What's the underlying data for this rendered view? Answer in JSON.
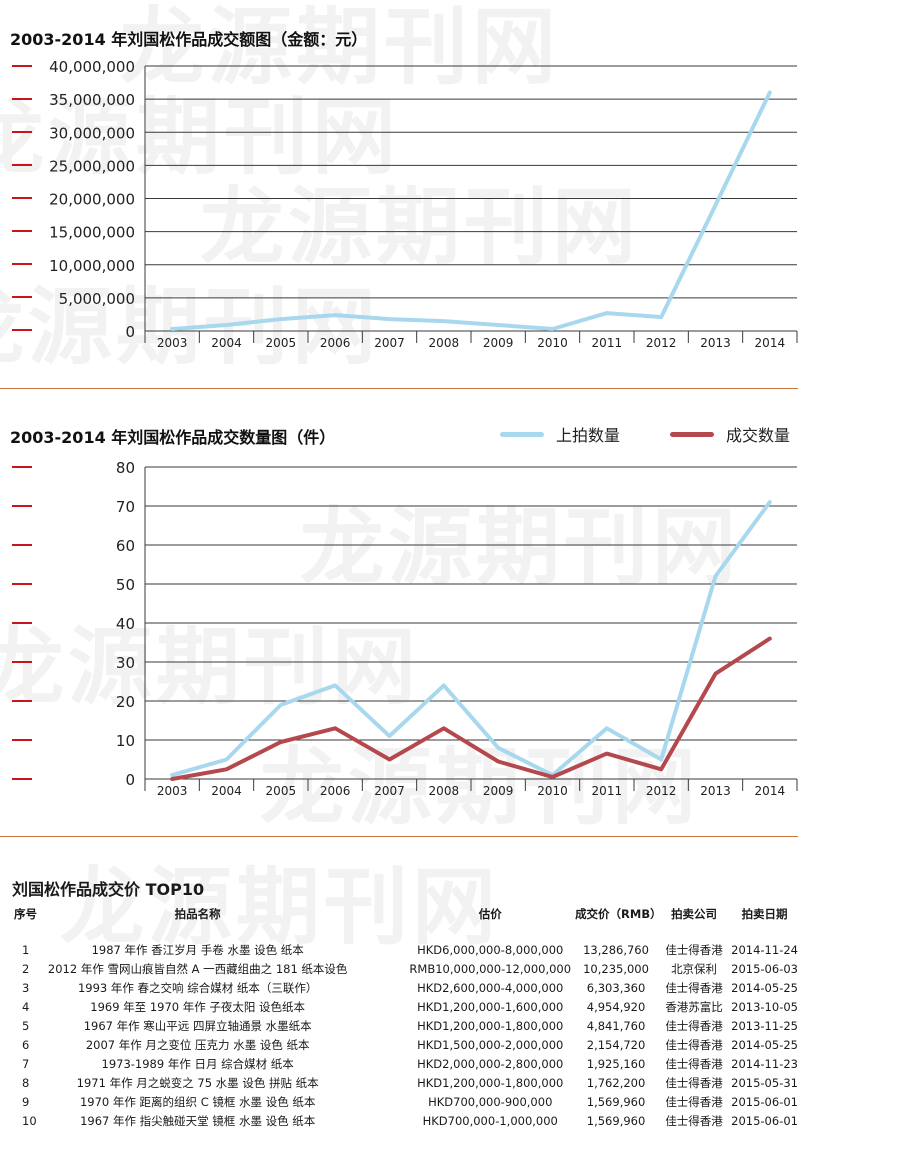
{
  "watermark_text": "龙源期刊网",
  "amount_chart": {
    "title": "2003-2014 年刘国松作品成交额图（金额：元）",
    "chart_data": {
      "type": "line",
      "x": [
        "2003",
        "2004",
        "2005",
        "2006",
        "2007",
        "2008",
        "2009",
        "2010",
        "2011",
        "2012",
        "2013",
        "2014"
      ],
      "series": [
        {
          "values": [
            300000,
            900000,
            1800000,
            2400000,
            1800000,
            1500000,
            900000,
            300000,
            2700000,
            2100000,
            19000000,
            36000000
          ],
          "color": "#a8d8ee"
        }
      ],
      "yticks": [
        "0",
        "5,000,000",
        "10,000,000",
        "15,000,000",
        "20,000,000",
        "25,000,000",
        "30,000,000",
        "35,000,000",
        "40,000,000"
      ],
      "ylim": [
        0,
        40000000
      ],
      "grid": true
    }
  },
  "count_chart": {
    "title": "2003-2014 年刘国松作品成交数量图（件）",
    "chart_data": {
      "type": "line",
      "x": [
        "2003",
        "2004",
        "2005",
        "2006",
        "2007",
        "2008",
        "2009",
        "2010",
        "2011",
        "2012",
        "2013",
        "2014"
      ],
      "series": [
        {
          "name": "上拍数量",
          "values": [
            1,
            5,
            19,
            24,
            11,
            24,
            8,
            1,
            13,
            5,
            52,
            71
          ],
          "color": "#a8d8ee"
        },
        {
          "name": "成交数量",
          "values": [
            0,
            2.5,
            9.5,
            13,
            5,
            13,
            4.5,
            0.5,
            6.5,
            2.5,
            27,
            36
          ],
          "color": "#b5484c"
        }
      ],
      "yticks": [
        "0",
        "10",
        "20",
        "30",
        "40",
        "50",
        "60",
        "70",
        "80"
      ],
      "ylim": [
        0,
        80
      ],
      "legend": "top-right",
      "grid": true
    }
  },
  "top10": {
    "title": "刘国松作品成交价 TOP10",
    "headers": [
      "序号",
      "拍品名称",
      "估价",
      "成交价（RMB）",
      "拍卖公司",
      "拍卖日期"
    ],
    "rows": [
      [
        "1",
        "1987 年作 香江岁月 手卷 水墨 设色 纸本",
        "HKD6,000,000-8,000,000",
        "13,286,760",
        "佳士得香港",
        "2014-11-24"
      ],
      [
        "2",
        "2012 年作 雪网山痕皆自然 A 一西藏组曲之 181 纸本设色",
        "RMB10,000,000-12,000,000",
        "10,235,000",
        "北京保利",
        "2015-06-03"
      ],
      [
        "3",
        "1993 年作 春之交响 综合媒材 纸本（三联作）",
        "HKD2,600,000-4,000,000",
        "6,303,360",
        "佳士得香港",
        "2014-05-25"
      ],
      [
        "4",
        "1969 年至 1970 年作 子夜太阳 设色纸本",
        "HKD1,200,000-1,600,000",
        "4,954,920",
        "香港苏富比",
        "2013-10-05"
      ],
      [
        "5",
        "1967 年作 寒山平远 四屏立轴通景 水墨纸本",
        "HKD1,200,000-1,800,000",
        "4,841,760",
        "佳士得香港",
        "2013-11-25"
      ],
      [
        "6",
        "2007 年作 月之变位 压克力 水墨 设色 纸本",
        "HKD1,500,000-2,000,000",
        "2,154,720",
        "佳士得香港",
        "2014-05-25"
      ],
      [
        "7",
        "1973-1989 年作 日月 综合媒材 纸本",
        "HKD2,000,000-2,800,000",
        "1,925,160",
        "佳士得香港",
        "2014-11-23"
      ],
      [
        "8",
        "1971 年作 月之蜕变之 75 水墨 设色 拼贴 纸本",
        "HKD1,200,000-1,800,000",
        "1,762,200",
        "佳士得香港",
        "2015-05-31"
      ],
      [
        "9",
        "1970 年作 距离的组织 C 镜框 水墨 设色 纸本",
        "HKD700,000-900,000",
        "1,569,960",
        "佳士得香港",
        "2015-06-01"
      ],
      [
        "10",
        "1967 年作 指尖触碰天堂 镜框 水墨 设色 纸本",
        "HKD700,000-1,000,000",
        "1,569,960",
        "佳士得香港",
        "2015-06-01"
      ]
    ]
  }
}
